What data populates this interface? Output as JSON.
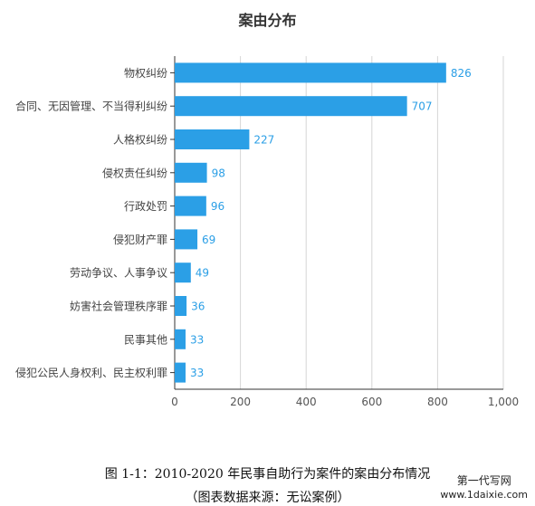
{
  "chart_data": {
    "type": "bar",
    "orientation": "horizontal",
    "title": "案由分布",
    "categories": [
      "物权纠纷",
      "合同、无因管理、不当得利纠纷",
      "人格权纠纷",
      "侵权责任纠纷",
      "行政处罚",
      "侵犯财产罪",
      "劳动争议、人事争议",
      "妨害社会管理秩序罪",
      "民事其他",
      "侵犯公民人身权利、民主权利罪"
    ],
    "values": [
      826,
      707,
      227,
      98,
      96,
      69,
      49,
      36,
      33,
      33
    ],
    "xlim": [
      0,
      1000
    ],
    "xticks": [
      "0",
      "200",
      "400",
      "600",
      "800",
      "1,000"
    ],
    "grid": true,
    "data_labels": true,
    "bar_color": "#2b9fe6",
    "label_color": "#2b9fe6"
  },
  "caption": {
    "line1": "图 1-1：2010-2020 年民事自助行为案件的案由分布情况",
    "line2": "（图表数据来源：无讼案例）"
  },
  "watermark": {
    "line1": "第一代写网",
    "line2": "www.1daixie.com"
  }
}
